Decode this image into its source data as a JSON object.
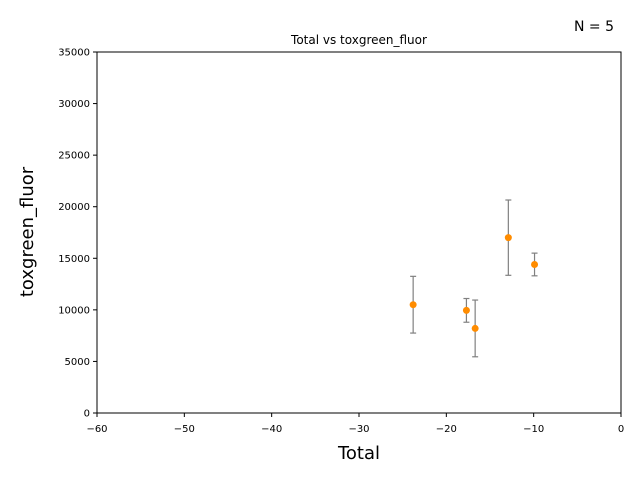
{
  "chart_data": {
    "type": "scatter",
    "title": "Total vs toxgreen_fluor",
    "xlabel": "Total",
    "ylabel": "toxgreen_fluor",
    "annotation": "N = 5",
    "xlim": [
      -60,
      0
    ],
    "ylim": [
      0,
      35000
    ],
    "xticks": [
      -60,
      -50,
      -40,
      -30,
      -20,
      -10,
      0
    ],
    "yticks": [
      0,
      5000,
      10000,
      15000,
      20000,
      25000,
      30000,
      35000
    ],
    "grid": false,
    "point_color": "#ff8c00",
    "errorbar_color": "#808080",
    "points": [
      {
        "x": -23.8,
        "y": 10500,
        "err": 2750
      },
      {
        "x": -17.7,
        "y": 9950,
        "err": 1150
      },
      {
        "x": -16.7,
        "y": 8200,
        "err": 2750
      },
      {
        "x": -12.9,
        "y": 17000,
        "err": 3650
      },
      {
        "x": -9.9,
        "y": 14400,
        "err": 1100
      }
    ]
  }
}
